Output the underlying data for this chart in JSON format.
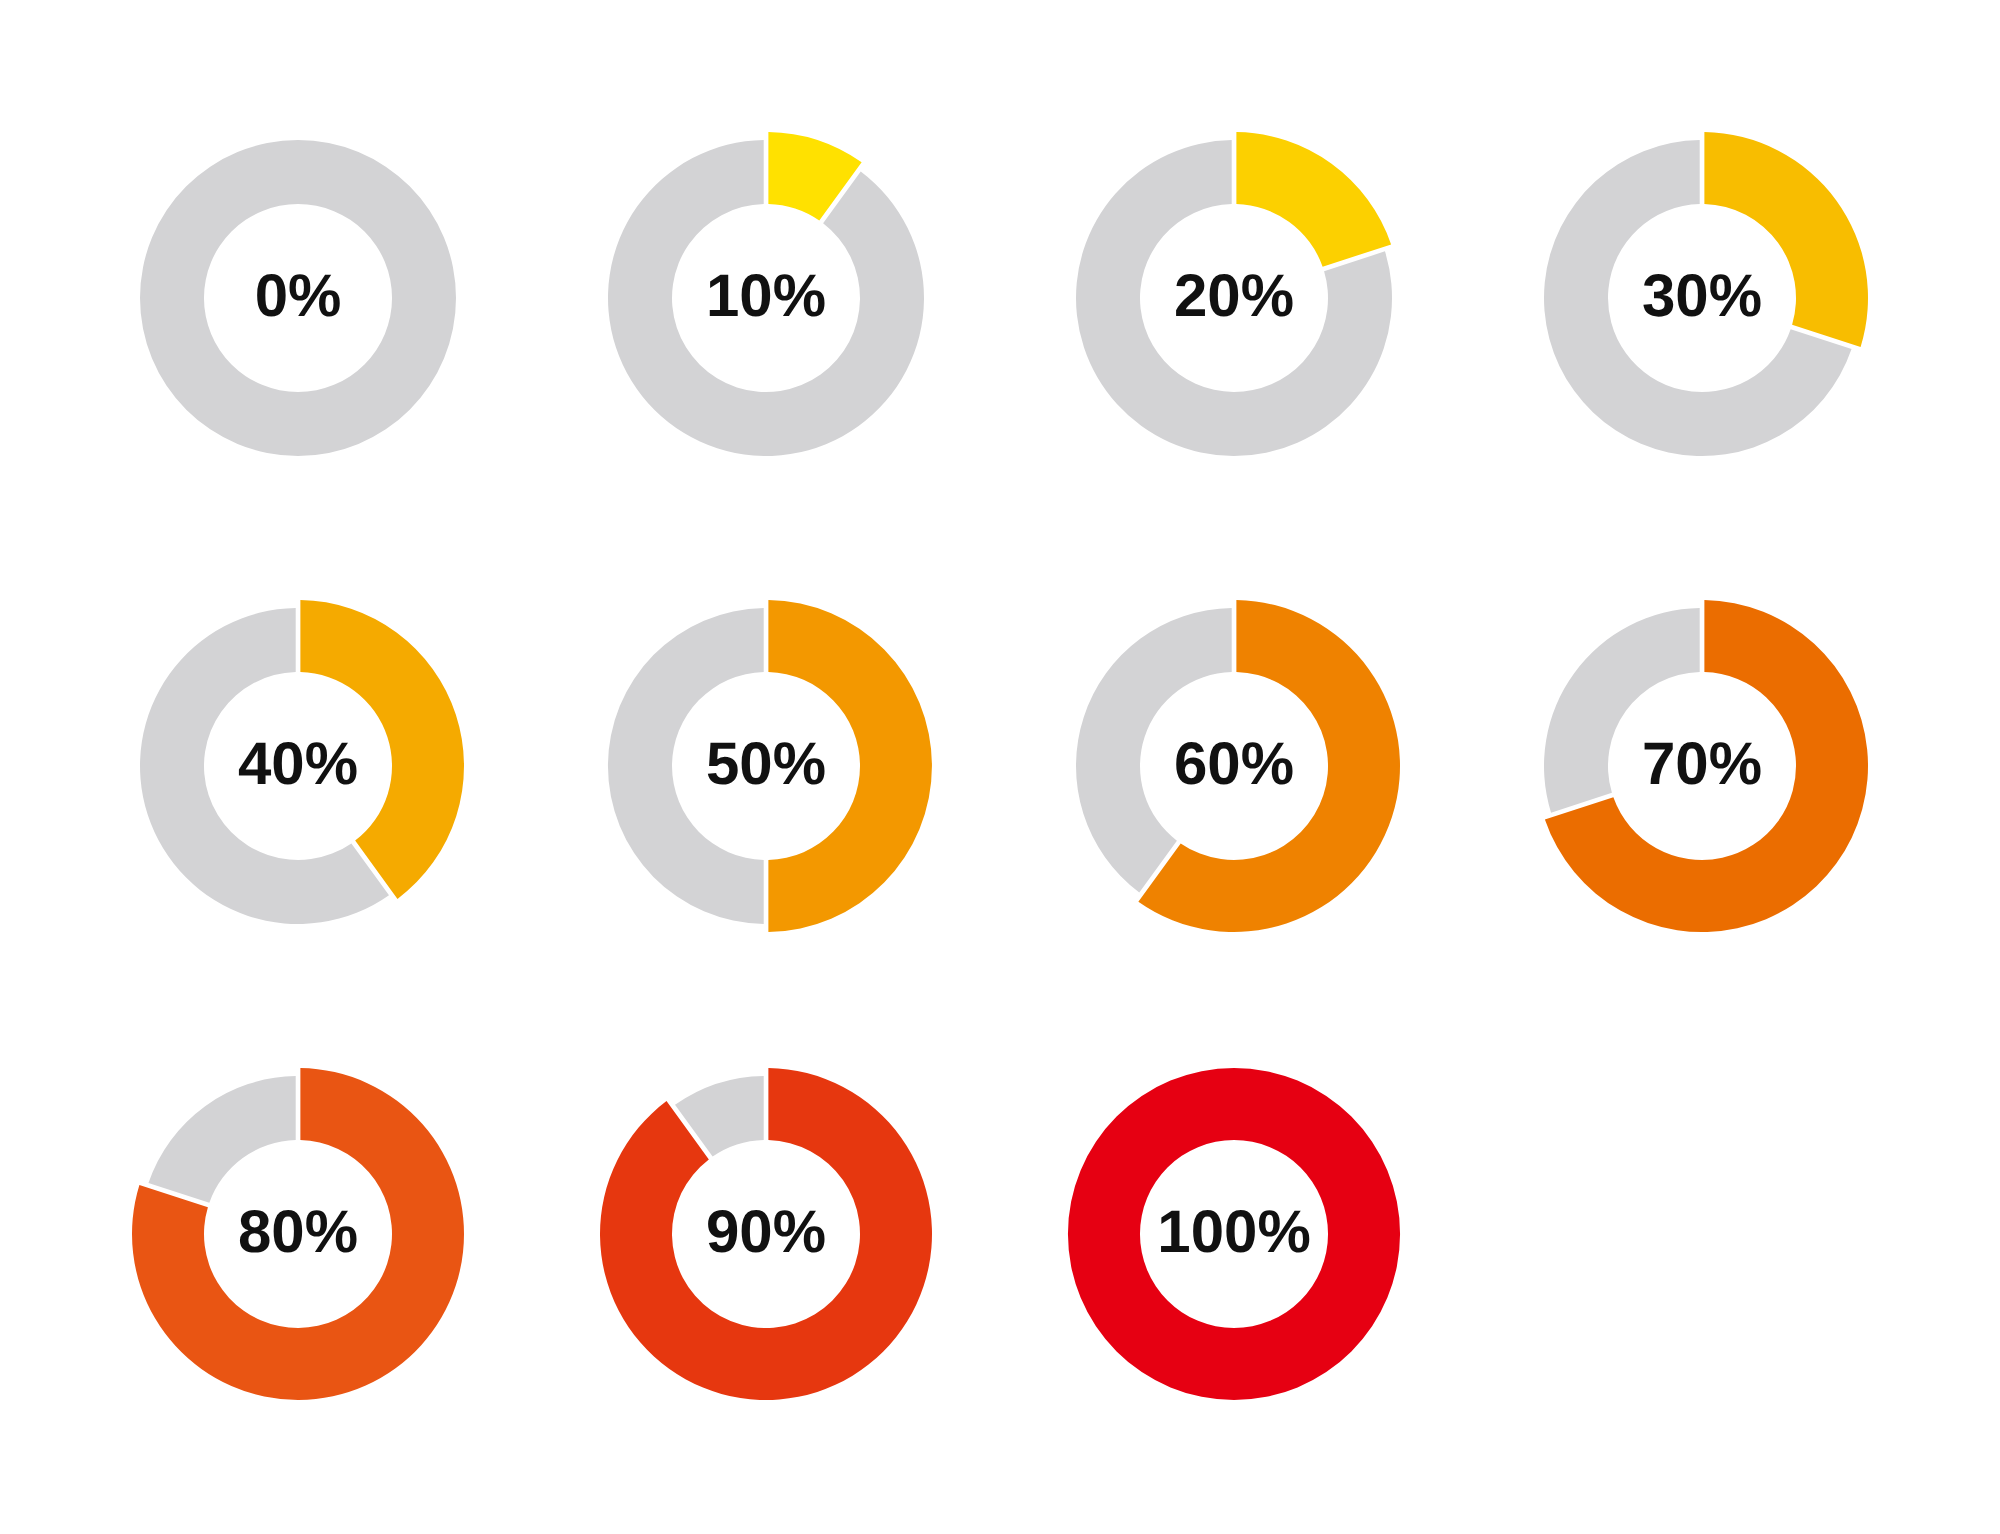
{
  "chart_data": [
    {
      "type": "donut",
      "categories": [
        null,
        null
      ],
      "values": [
        0,
        100
      ],
      "colors": [
        "#ffe100",
        "#d3d3d5"
      ],
      "annotations": [
        "0%"
      ]
    },
    {
      "type": "donut",
      "categories": [
        null,
        null
      ],
      "values": [
        10,
        90
      ],
      "colors": [
        "#ffe100",
        "#d3d3d5"
      ],
      "annotations": [
        "10%"
      ]
    },
    {
      "type": "donut",
      "categories": [
        null,
        null
      ],
      "values": [
        20,
        80
      ],
      "colors": [
        "#fcd000",
        "#d3d3d5"
      ],
      "annotations": [
        "20%"
      ]
    },
    {
      "type": "donut",
      "categories": [
        null,
        null
      ],
      "values": [
        30,
        70
      ],
      "colors": [
        "#f8bd00",
        "#d3d3d5"
      ],
      "annotations": [
        "30%"
      ]
    },
    {
      "type": "donut",
      "categories": [
        null,
        null
      ],
      "values": [
        40,
        60
      ],
      "colors": [
        "#f5aa00",
        "#d3d3d5"
      ],
      "annotations": [
        "40%"
      ]
    },
    {
      "type": "donut",
      "categories": [
        null,
        null
      ],
      "values": [
        50,
        50
      ],
      "colors": [
        "#f39800",
        "#d3d3d5"
      ],
      "annotations": [
        "50%"
      ]
    },
    {
      "type": "donut",
      "categories": [
        null,
        null
      ],
      "values": [
        60,
        40
      ],
      "colors": [
        "#ef8200",
        "#d3d3d5"
      ],
      "annotations": [
        "60%"
      ]
    },
    {
      "type": "donut",
      "categories": [
        null,
        null
      ],
      "values": [
        70,
        30
      ],
      "colors": [
        "#eb6d00",
        "#d3d3d5"
      ],
      "annotations": [
        "70%"
      ]
    },
    {
      "type": "donut",
      "categories": [
        null,
        null
      ],
      "values": [
        80,
        20
      ],
      "colors": [
        "#e95513",
        "#d3d3d5"
      ],
      "annotations": [
        "80%"
      ]
    },
    {
      "type": "donut",
      "categories": [
        null,
        null
      ],
      "values": [
        90,
        10
      ],
      "colors": [
        "#e6370f",
        "#d3d3d5"
      ],
      "annotations": [
        "90%"
      ]
    },
    {
      "type": "donut",
      "categories": [
        null,
        null
      ],
      "values": [
        100,
        0
      ],
      "colors": [
        "#e60012",
        "#d3d3d5"
      ],
      "annotations": [
        "100%"
      ]
    }
  ]
}
